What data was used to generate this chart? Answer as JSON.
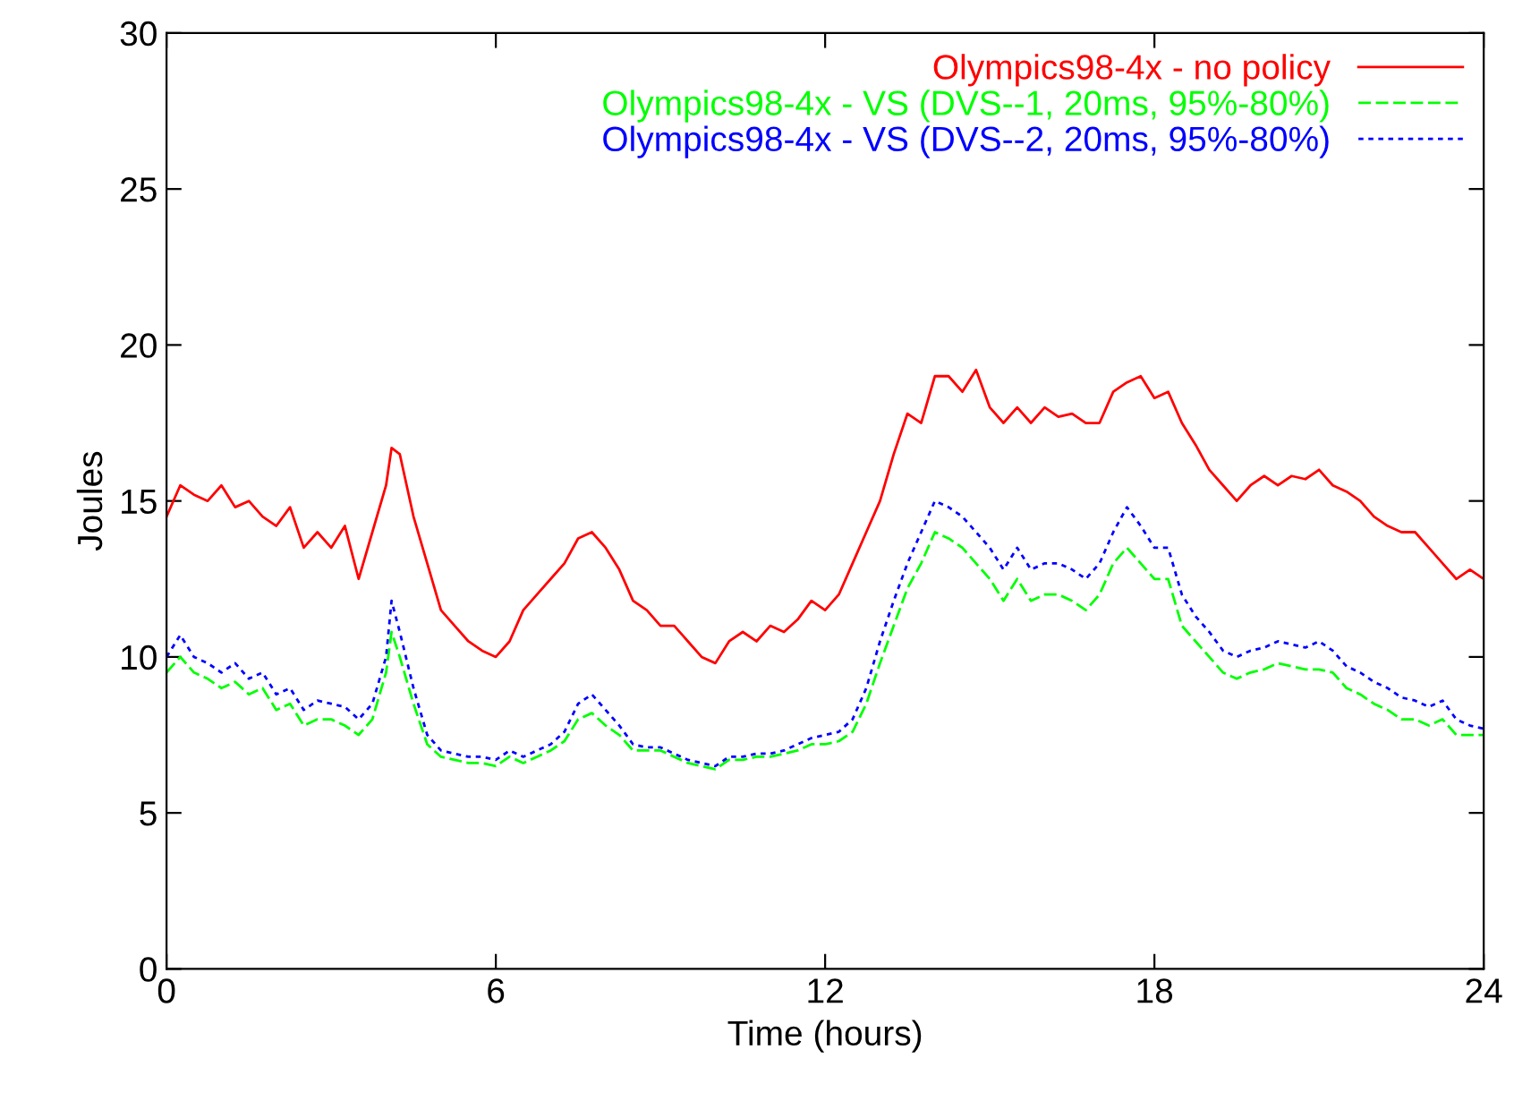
{
  "chart_data": {
    "type": "line",
    "xlabel": "Time (hours)",
    "ylabel": "Joules",
    "xlim": [
      0,
      24
    ],
    "ylim": [
      0,
      30
    ],
    "xticks": [
      0,
      6,
      12,
      18,
      24
    ],
    "yticks": [
      0,
      5,
      10,
      15,
      20,
      25,
      30
    ],
    "grid": false,
    "legend": "top right",
    "marker": "none",
    "x": [
      0,
      0.25,
      0.5,
      0.75,
      1,
      1.25,
      1.5,
      1.75,
      2,
      2.25,
      2.5,
      2.75,
      3,
      3.25,
      3.5,
      3.75,
      4,
      4.1,
      4.25,
      4.5,
      4.75,
      5,
      5.25,
      5.5,
      5.75,
      6,
      6.25,
      6.5,
      6.75,
      7,
      7.25,
      7.5,
      7.75,
      8,
      8.25,
      8.5,
      8.75,
      9,
      9.25,
      9.5,
      9.75,
      10,
      10.25,
      10.5,
      10.75,
      11,
      11.25,
      11.5,
      11.75,
      12,
      12.25,
      12.5,
      12.75,
      13,
      13.25,
      13.5,
      13.75,
      14,
      14.25,
      14.5,
      14.75,
      15,
      15.25,
      15.5,
      15.75,
      16,
      16.25,
      16.5,
      16.75,
      17,
      17.25,
      17.5,
      17.75,
      18,
      18.25,
      18.5,
      18.75,
      19,
      19.25,
      19.5,
      19.75,
      20,
      20.25,
      20.5,
      20.75,
      21,
      21.25,
      21.5,
      21.75,
      22,
      22.25,
      22.5,
      22.75,
      23,
      23.25,
      23.5,
      23.75,
      24
    ],
    "series": [
      {
        "name": "Olympics98-4x - no policy",
        "color": "#ff0000",
        "line_style": "solid",
        "values": [
          14.5,
          15.5,
          15.2,
          15.0,
          15.5,
          14.8,
          15.0,
          14.5,
          14.2,
          14.8,
          13.5,
          14.0,
          13.5,
          14.2,
          12.5,
          14.0,
          15.5,
          16.7,
          16.5,
          14.5,
          13.0,
          11.5,
          11.0,
          10.5,
          10.2,
          10.0,
          10.5,
          11.5,
          12.0,
          12.5,
          13.0,
          13.8,
          14.0,
          13.5,
          12.8,
          11.8,
          11.5,
          11.0,
          11.0,
          10.5,
          10.0,
          9.8,
          10.5,
          10.8,
          10.5,
          11.0,
          10.8,
          11.2,
          11.8,
          11.5,
          12.0,
          13.0,
          14.0,
          15.0,
          16.5,
          17.8,
          17.5,
          19.0,
          19.0,
          18.5,
          19.2,
          18.0,
          17.5,
          18.0,
          17.5,
          18.0,
          17.7,
          17.8,
          17.5,
          17.5,
          18.5,
          18.8,
          19.0,
          18.3,
          18.5,
          17.5,
          16.8,
          16.0,
          15.5,
          15.0,
          15.5,
          15.8,
          15.5,
          15.8,
          15.7,
          16.0,
          15.5,
          15.3,
          15.0,
          14.5,
          14.2,
          14.0,
          14.0,
          13.5,
          13.0,
          12.5,
          12.8,
          12.5
        ]
      },
      {
        "name": "Olympics98-4x - VS (DVS--1, 20ms, 95%-80%)",
        "color": "#00ff00",
        "line_style": "dashed",
        "values": [
          9.5,
          10.0,
          9.5,
          9.3,
          9.0,
          9.2,
          8.8,
          9.0,
          8.3,
          8.5,
          7.8,
          8.0,
          8.0,
          7.8,
          7.5,
          8.0,
          9.5,
          10.8,
          10.0,
          8.5,
          7.2,
          6.8,
          6.7,
          6.6,
          6.6,
          6.5,
          6.8,
          6.6,
          6.8,
          7.0,
          7.3,
          8.0,
          8.2,
          7.8,
          7.5,
          7.0,
          7.0,
          7.0,
          6.8,
          6.6,
          6.5,
          6.4,
          6.7,
          6.7,
          6.8,
          6.8,
          6.9,
          7.0,
          7.2,
          7.2,
          7.3,
          7.6,
          8.5,
          9.8,
          11.0,
          12.2,
          13.0,
          14.0,
          13.8,
          13.5,
          13.0,
          12.5,
          11.8,
          12.5,
          11.8,
          12.0,
          12.0,
          11.8,
          11.5,
          12.0,
          13.0,
          13.5,
          13.0,
          12.5,
          12.5,
          11.0,
          10.5,
          10.0,
          9.5,
          9.3,
          9.5,
          9.6,
          9.8,
          9.7,
          9.6,
          9.6,
          9.5,
          9.0,
          8.8,
          8.5,
          8.3,
          8.0,
          8.0,
          7.8,
          8.0,
          7.5,
          7.5,
          7.5
        ]
      },
      {
        "name": "Olympics98-4x - VS (DVS--2, 20ms, 95%-80%)",
        "color": "#0000ff",
        "line_style": "dotted",
        "values": [
          10.0,
          10.7,
          10.0,
          9.8,
          9.5,
          9.8,
          9.3,
          9.5,
          8.8,
          9.0,
          8.3,
          8.6,
          8.5,
          8.4,
          8.0,
          8.5,
          10.0,
          11.8,
          10.8,
          9.0,
          7.5,
          7.0,
          6.9,
          6.8,
          6.8,
          6.7,
          7.0,
          6.8,
          7.0,
          7.2,
          7.6,
          8.5,
          8.8,
          8.3,
          7.8,
          7.2,
          7.1,
          7.1,
          6.9,
          6.7,
          6.6,
          6.5,
          6.8,
          6.8,
          6.9,
          6.9,
          7.0,
          7.2,
          7.4,
          7.5,
          7.6,
          8.0,
          9.0,
          10.5,
          11.8,
          13.0,
          14.0,
          15.0,
          14.8,
          14.5,
          14.0,
          13.5,
          12.8,
          13.5,
          12.8,
          13.0,
          13.0,
          12.8,
          12.5,
          13.0,
          14.0,
          14.8,
          14.2,
          13.5,
          13.5,
          12.0,
          11.3,
          10.8,
          10.2,
          10.0,
          10.2,
          10.3,
          10.5,
          10.4,
          10.3,
          10.5,
          10.2,
          9.7,
          9.5,
          9.2,
          9.0,
          8.7,
          8.6,
          8.4,
          8.6,
          8.0,
          7.8,
          7.7
        ]
      }
    ]
  }
}
